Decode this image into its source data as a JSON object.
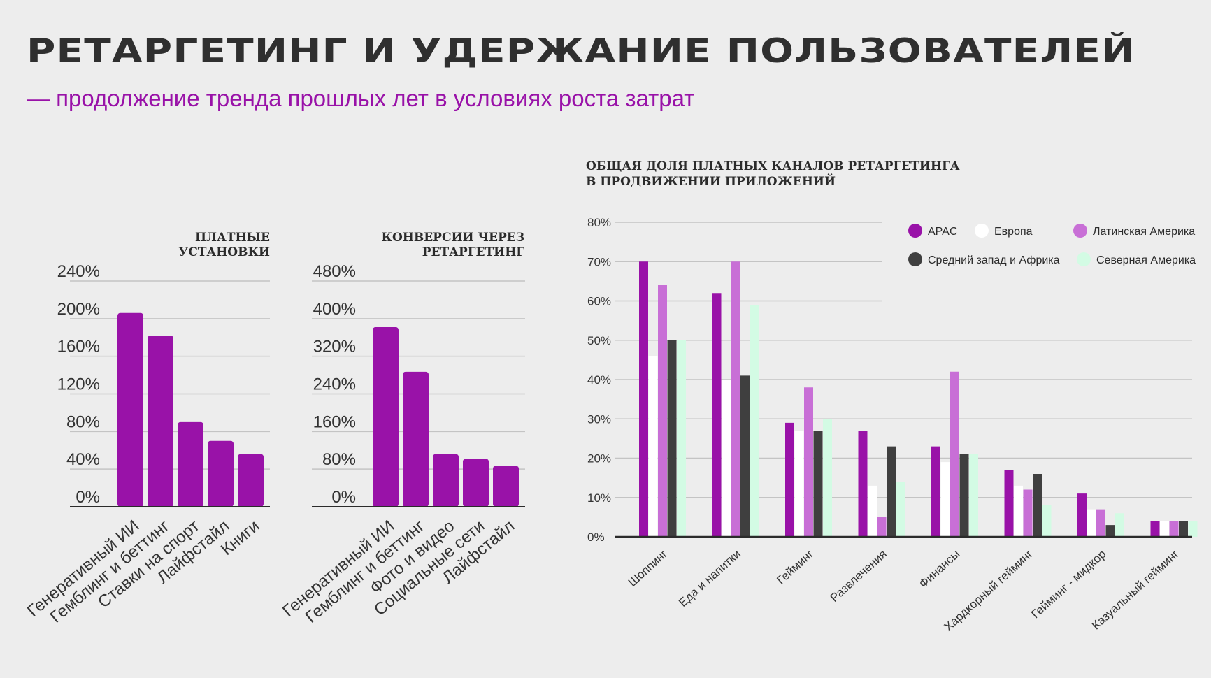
{
  "header": {
    "title": "РЕТАРГЕТИНГ И УДЕРЖАНИЕ ПОЛЬЗОВАТЕЛЕЙ",
    "subtitle": "— продолжение тренда прошлых лет в условиях роста затрат"
  },
  "colors": {
    "accent": "#9912a8",
    "apac": "#9912a8",
    "europe": "#ffffff",
    "latam": "#c86fd6",
    "mea": "#3f3f3f",
    "na": "#d3fbe4",
    "grid": "#c4c4c4",
    "axis": "#2b2b2b"
  },
  "chart_data": [
    {
      "type": "bar",
      "title_lines": [
        "ПЛАТНЫЕ",
        "УСТАНОВКИ"
      ],
      "categories": [
        "Генеративный ИИ",
        "Гемблинг и беттинг",
        "Ставки на спорт",
        "Лайфстайл",
        "Книги"
      ],
      "values": [
        206,
        182,
        90,
        70,
        56
      ],
      "ylim": [
        0,
        240
      ],
      "yticks": [
        0,
        40,
        80,
        120,
        160,
        200,
        240
      ],
      "ytick_labels": [
        "0%",
        "40%",
        "80%",
        "120%",
        "160%",
        "200%",
        "240%"
      ],
      "grid": true
    },
    {
      "type": "bar",
      "title_lines": [
        "КОНВЕРСИИ ЧЕРЕЗ",
        "РЕТАРГЕТИНГ"
      ],
      "categories": [
        "Генеративный ИИ",
        "Гемблинг и беттинг",
        "Фото и видео",
        "Социальные сети",
        "Лайфстайл"
      ],
      "values": [
        382,
        287,
        112,
        102,
        87
      ],
      "ylim": [
        0,
        480
      ],
      "yticks": [
        0,
        80,
        160,
        240,
        320,
        400,
        480
      ],
      "ytick_labels": [
        "0%",
        "80%",
        "160%",
        "240%",
        "320%",
        "400%",
        "480%"
      ],
      "grid": true
    },
    {
      "type": "bar",
      "title_lines": [
        "ОБЩАЯ ДОЛЯ ПЛАТНЫХ КАНАЛОВ РЕТАРГЕТИНГА",
        "В ПРОДВИЖЕНИИ ПРИЛОЖЕНИЙ"
      ],
      "categories": [
        "Шоппинг",
        "Еда и напитки",
        "Гейминг",
        "Развлечения",
        "Финансы",
        "Хардкорный гейминг",
        "Гейминг - мидкор",
        "Казуальный гейминг"
      ],
      "series": [
        {
          "name": "APAC",
          "color_key": "apac",
          "values": [
            70,
            62,
            29,
            27,
            23,
            17,
            11,
            4
          ]
        },
        {
          "name": "Европа",
          "color_key": "europe",
          "values": [
            46,
            40,
            27,
            13,
            19,
            13,
            7,
            4
          ]
        },
        {
          "name": "Латинская Америка",
          "color_key": "latam",
          "values": [
            64,
            70,
            38,
            5,
            42,
            12,
            7,
            4
          ]
        },
        {
          "name": "Средний запад и Африка",
          "color_key": "mea",
          "values": [
            50,
            41,
            27,
            23,
            21,
            16,
            3,
            4
          ]
        },
        {
          "name": "Северная Америка",
          "color_key": "na",
          "values": [
            50,
            59,
            30,
            14,
            21,
            8,
            6,
            4
          ]
        }
      ],
      "ylim": [
        0,
        80
      ],
      "yticks": [
        0,
        10,
        20,
        30,
        40,
        50,
        60,
        70,
        80
      ],
      "ytick_labels": [
        "0%",
        "10%",
        "20%",
        "30%",
        "40%",
        "50%",
        "60%",
        "70%",
        "80%"
      ],
      "grid": true,
      "legend_position": "top-right"
    }
  ]
}
